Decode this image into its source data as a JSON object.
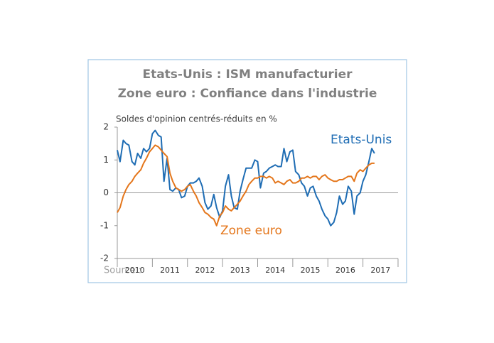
{
  "chart_data": {
    "type": "line",
    "title": [
      "Etats-Unis : ISM manufacturier",
      "Zone euro : Confiance dans l'industrie"
    ],
    "y_label": "Soldes d'opinion centrés-réduits en %",
    "source": "Source :",
    "x": [
      2010,
      2010.08,
      2010.17,
      2010.25,
      2010.33,
      2010.42,
      2010.5,
      2010.58,
      2010.67,
      2010.75,
      2010.83,
      2010.92,
      2011,
      2011.08,
      2011.17,
      2011.25,
      2011.33,
      2011.42,
      2011.5,
      2011.58,
      2011.67,
      2011.75,
      2011.83,
      2011.92,
      2012,
      2012.08,
      2012.17,
      2012.25,
      2012.33,
      2012.42,
      2012.5,
      2012.58,
      2012.67,
      2012.75,
      2012.83,
      2012.92,
      2013,
      2013.08,
      2013.17,
      2013.25,
      2013.33,
      2013.42,
      2013.5,
      2013.58,
      2013.67,
      2013.75,
      2013.83,
      2013.92,
      2014,
      2014.08,
      2014.17,
      2014.25,
      2014.33,
      2014.42,
      2014.5,
      2014.58,
      2014.67,
      2014.75,
      2014.83,
      2014.92,
      2015,
      2015.08,
      2015.17,
      2015.25,
      2015.33,
      2015.42,
      2015.5,
      2015.58,
      2015.67,
      2015.75,
      2015.83,
      2015.92,
      2016,
      2016.08,
      2016.17,
      2016.25,
      2016.33,
      2016.42,
      2016.5,
      2016.58,
      2016.67,
      2016.75,
      2016.83,
      2016.92,
      2017,
      2017.08,
      2017.17,
      2017.25,
      2017.33
    ],
    "series": [
      {
        "name": "Etats-Unis",
        "color": "#1f6db4",
        "values": [
          1.3,
          0.95,
          1.6,
          1.5,
          1.45,
          0.95,
          0.85,
          1.2,
          1.05,
          1.35,
          1.25,
          1.35,
          1.8,
          1.9,
          1.75,
          1.7,
          0.35,
          1.05,
          0.1,
          0.05,
          0.15,
          0.1,
          -0.15,
          -0.1,
          0.2,
          0.3,
          0.3,
          0.35,
          0.45,
          0.2,
          -0.3,
          -0.5,
          -0.4,
          -0.05,
          -0.45,
          -0.75,
          -0.55,
          0.2,
          0.55,
          -0.1,
          -0.45,
          -0.5,
          0.05,
          0.4,
          0.75,
          0.75,
          0.75,
          1.0,
          0.95,
          0.15,
          0.6,
          0.65,
          0.75,
          0.8,
          0.85,
          0.8,
          0.8,
          1.35,
          0.95,
          1.25,
          1.3,
          0.65,
          0.55,
          0.3,
          0.2,
          -0.1,
          0.15,
          0.2,
          -0.1,
          -0.25,
          -0.5,
          -0.7,
          -0.8,
          -1.0,
          -0.9,
          -0.6,
          -0.1,
          -0.35,
          -0.25,
          0.2,
          0.05,
          -0.65,
          -0.1,
          0.0,
          0.35,
          0.55,
          0.95,
          1.35,
          1.2
        ]
      },
      {
        "name": "Zone euro",
        "color": "#e4761b",
        "values": [
          -0.6,
          -0.45,
          -0.1,
          0.1,
          0.25,
          0.35,
          0.5,
          0.6,
          0.7,
          0.9,
          1.05,
          1.25,
          1.35,
          1.45,
          1.4,
          1.3,
          1.2,
          1.1,
          0.6,
          0.35,
          0.15,
          0.1,
          0.05,
          0.1,
          0.2,
          0.25,
          0.05,
          -0.1,
          -0.3,
          -0.45,
          -0.6,
          -0.65,
          -0.75,
          -0.8,
          -1.0,
          -0.7,
          -0.6,
          -0.4,
          -0.5,
          -0.55,
          -0.45,
          -0.35,
          -0.25,
          -0.1,
          0.05,
          0.25,
          0.35,
          0.45,
          0.45,
          0.5,
          0.5,
          0.45,
          0.5,
          0.45,
          0.3,
          0.35,
          0.3,
          0.25,
          0.35,
          0.4,
          0.3,
          0.3,
          0.35,
          0.45,
          0.45,
          0.5,
          0.45,
          0.5,
          0.5,
          0.4,
          0.5,
          0.55,
          0.45,
          0.4,
          0.35,
          0.35,
          0.4,
          0.4,
          0.45,
          0.5,
          0.5,
          0.35,
          0.6,
          0.7,
          0.65,
          0.75,
          0.85,
          0.9,
          0.9
        ]
      }
    ],
    "xlim": [
      2010,
      2018
    ],
    "xticks": [
      {
        "value": 2010.5,
        "label": "2010"
      },
      {
        "value": 2011.5,
        "label": "2011"
      },
      {
        "value": 2012.5,
        "label": "2012"
      },
      {
        "value": 2013.5,
        "label": "2013"
      },
      {
        "value": 2014.5,
        "label": "2014"
      },
      {
        "value": 2015.5,
        "label": "2015"
      },
      {
        "value": 2016.5,
        "label": "2016"
      },
      {
        "value": 2017.5,
        "label": "2017"
      }
    ],
    "ylim": [
      -2,
      2
    ],
    "yticks": [
      -2,
      -1,
      0,
      1,
      2
    ]
  }
}
